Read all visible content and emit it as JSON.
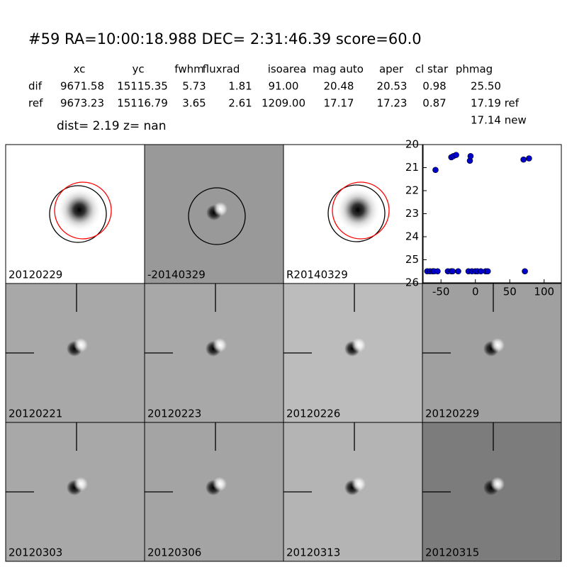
{
  "header": {
    "title": "#59   RA=10:00:18.988 DEC= 2:31:46.39      score=60.0",
    "dist": "dist=  2.19      z=   nan"
  },
  "table": {
    "columns": [
      "xc",
      "yc",
      "fwhm",
      "fluxrad",
      "isoarea",
      "mag auto",
      "aper",
      "cl star",
      "phmag"
    ],
    "rows": [
      {
        "label": "dif",
        "values": [
          "9671.58",
          "15115.35",
          "5.73",
          "1.81",
          "91.00",
          "20.48",
          "20.53",
          "0.98",
          "25.50"
        ]
      },
      {
        "label": "ref",
        "values": [
          "9673.23",
          "15116.79",
          "3.65",
          "2.61",
          "1209.00",
          "17.17",
          "17.23",
          "0.87",
          "17.19 ref"
        ]
      }
    ],
    "note": "17.14 new"
  },
  "panels": [
    {
      "label": "20120229"
    },
    {
      "label": "-20140329"
    },
    {
      "label": "R20140329"
    },
    {
      "label": "20120221"
    },
    {
      "label": "20120223"
    },
    {
      "label": "20120226"
    },
    {
      "label": "20120229",
      "color": "#ff0000"
    },
    {
      "label": "20120303"
    },
    {
      "label": "20120306"
    },
    {
      "label": "20120313"
    },
    {
      "label": "20120315"
    }
  ],
  "chart_data": {
    "type": "scatter",
    "color": "#0000cc",
    "x": [
      -70,
      -66,
      -62,
      -60,
      -55,
      -58,
      -40,
      -35,
      -33,
      -25,
      -35,
      -32,
      -28,
      -8,
      -7,
      -10,
      -5,
      0,
      3,
      8,
      15,
      18,
      70,
      78,
      72
    ],
    "values": [
      25.5,
      25.5,
      25.5,
      25.5,
      25.5,
      21.1,
      25.5,
      25.5,
      25.5,
      25.5,
      20.55,
      20.5,
      20.45,
      20.7,
      20.5,
      25.5,
      25.5,
      25.5,
      25.5,
      25.5,
      25.5,
      25.5,
      20.65,
      20.6,
      25.5
    ],
    "xlim": [
      -76,
      125
    ],
    "ylim": [
      20,
      26
    ],
    "y_inverted": true,
    "xticks": [
      -50,
      0,
      50,
      100
    ],
    "yticks": [
      20,
      21,
      22,
      23,
      24,
      25,
      26
    ]
  }
}
